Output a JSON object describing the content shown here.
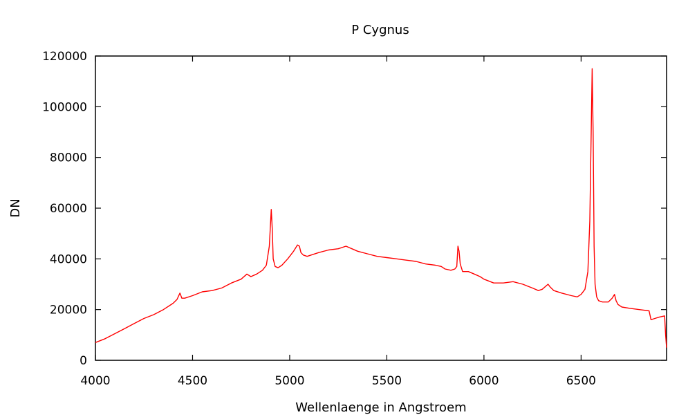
{
  "chart_data": {
    "type": "line",
    "title": "P Cygnus",
    "xlabel": "Wellenlaenge in Angstroem",
    "ylabel": "DN",
    "xlim": [
      4000,
      6940
    ],
    "ylim": [
      0,
      120000
    ],
    "xticks": [
      4000,
      4500,
      5000,
      5500,
      6000,
      6500
    ],
    "yticks": [
      0,
      20000,
      40000,
      60000,
      80000,
      100000,
      120000
    ],
    "grid": false,
    "line_color": "#ff0000",
    "series": [
      {
        "x": [
          4000,
          4050,
          4100,
          4150,
          4200,
          4250,
          4300,
          4350,
          4400,
          4420,
          4435,
          4445,
          4460,
          4500,
          4550,
          4600,
          4650,
          4700,
          4750,
          4780,
          4800,
          4830,
          4860,
          4880,
          4895,
          4905,
          4910,
          4915,
          4925,
          4940,
          4960,
          4990,
          5020,
          5040,
          5050,
          5058,
          5070,
          5090,
          5110,
          5150,
          5200,
          5250,
          5290,
          5320,
          5350,
          5400,
          5450,
          5500,
          5550,
          5600,
          5650,
          5700,
          5750,
          5780,
          5800,
          5830,
          5850,
          5860,
          5866,
          5872,
          5878,
          5890,
          5920,
          5950,
          5980,
          6000,
          6050,
          6100,
          6150,
          6200,
          6250,
          6280,
          6300,
          6330,
          6340,
          6360,
          6400,
          6450,
          6480,
          6500,
          6520,
          6535,
          6545,
          6552,
          6557,
          6562,
          6567,
          6572,
          6580,
          6590,
          6610,
          6640,
          6660,
          6672,
          6680,
          6690,
          6710,
          6750,
          6800,
          6850,
          6860,
          6880,
          6900,
          6930,
          6935,
          6940
        ],
        "y": [
          7000,
          8500,
          10500,
          12500,
          14500,
          16500,
          18000,
          20000,
          22500,
          24000,
          26500,
          24500,
          24500,
          25500,
          27000,
          27500,
          28500,
          30500,
          32000,
          34000,
          33000,
          34000,
          35500,
          37500,
          45000,
          59500,
          52000,
          40000,
          37000,
          36500,
          37500,
          40000,
          43000,
          45500,
          45000,
          42500,
          41500,
          41000,
          41500,
          42500,
          43500,
          44000,
          45000,
          44000,
          43000,
          42000,
          41000,
          40500,
          40000,
          39500,
          39000,
          38000,
          37500,
          37000,
          36000,
          35500,
          36000,
          37000,
          45000,
          43000,
          38000,
          35000,
          35000,
          34000,
          33000,
          32000,
          30500,
          30500,
          31000,
          30000,
          28500,
          27500,
          28000,
          30000,
          29000,
          27500,
          26500,
          25500,
          25000,
          26000,
          28000,
          35000,
          55000,
          90000,
          115000,
          90000,
          45000,
          30000,
          25000,
          23500,
          23000,
          23000,
          24500,
          26000,
          23500,
          22000,
          21000,
          20500,
          20000,
          19500,
          16000,
          16500,
          17000,
          17500,
          10000,
          5000
        ]
      }
    ]
  }
}
